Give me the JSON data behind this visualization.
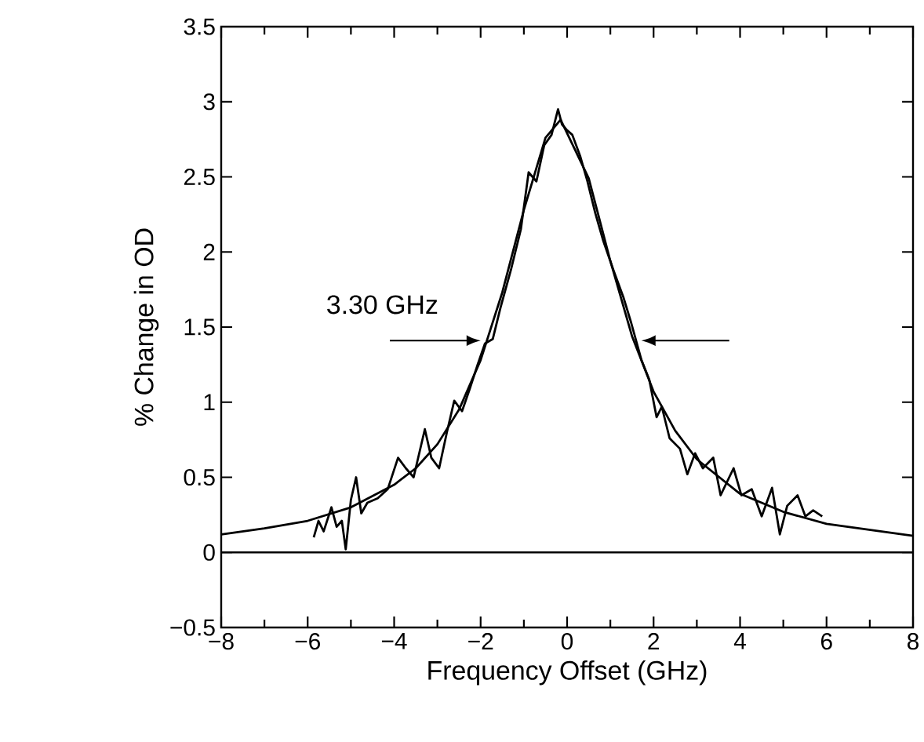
{
  "chart_data": {
    "type": "line",
    "xlabel": "Frequency Offset (GHz)",
    "ylabel": "% Change in OD",
    "annotations": [
      "3.30 GHz"
    ],
    "series": [
      {
        "color": "#000000",
        "x": [
          -5.86,
          -5.75,
          -5.63,
          -5.45,
          -5.33,
          -5.21,
          -5.12,
          -5.0,
          -4.88,
          -4.76,
          -4.62,
          -4.38,
          -4.15,
          -3.91,
          -3.73,
          -3.55,
          -3.29,
          -3.14,
          -2.96,
          -2.78,
          -2.61,
          -2.43,
          -2.25,
          -2.07,
          -1.9,
          -1.72,
          -1.54,
          -1.3,
          -1.07,
          -0.89,
          -0.71,
          -0.53,
          -0.36,
          -0.21,
          -0.12,
          0.0,
          0.12,
          0.3,
          0.47,
          0.65,
          0.83,
          1.07,
          1.3,
          1.48,
          1.72,
          1.9,
          2.07,
          2.19,
          2.37,
          2.61,
          2.78,
          2.96,
          3.14,
          3.38,
          3.55,
          3.85,
          4.03,
          4.27,
          4.5,
          4.74,
          4.92,
          5.09,
          5.33,
          5.51,
          5.69,
          5.9
        ],
        "values": [
          0.1,
          0.21,
          0.14,
          0.3,
          0.17,
          0.21,
          0.02,
          0.35,
          0.5,
          0.26,
          0.33,
          0.36,
          0.42,
          0.63,
          0.56,
          0.5,
          0.82,
          0.63,
          0.56,
          0.8,
          1.01,
          0.94,
          1.09,
          1.25,
          1.39,
          1.42,
          1.63,
          1.88,
          2.15,
          2.53,
          2.47,
          2.71,
          2.78,
          2.95,
          2.85,
          2.81,
          2.78,
          2.64,
          2.47,
          2.26,
          2.08,
          1.88,
          1.7,
          1.53,
          1.28,
          1.15,
          0.9,
          0.97,
          0.76,
          0.69,
          0.52,
          0.66,
          0.56,
          0.63,
          0.38,
          0.56,
          0.38,
          0.42,
          0.24,
          0.43,
          0.12,
          0.31,
          0.38,
          0.24,
          0.28,
          0.24
        ]
      },
      {
        "color": "#000000",
        "x": [
          -8,
          -7,
          -6,
          -5,
          -4,
          -3.5,
          -3,
          -2.5,
          -2,
          -1.5,
          -1,
          -0.5,
          -0.15,
          0.5,
          1,
          1.5,
          2,
          2.5,
          3,
          4,
          5,
          6,
          7,
          8
        ],
        "values": [
          0.12,
          0.16,
          0.21,
          0.3,
          0.45,
          0.56,
          0.72,
          0.95,
          1.28,
          1.73,
          2.28,
          2.76,
          2.88,
          2.49,
          1.94,
          1.44,
          1.07,
          0.81,
          0.62,
          0.39,
          0.27,
          0.19,
          0.15,
          0.11
        ]
      }
    ],
    "ref_lines": [
      {
        "axis": "y",
        "value": 0,
        "color": "#000000"
      }
    ],
    "xlim": [
      -8,
      8
    ],
    "ylim": [
      -0.5,
      3.5
    ],
    "xticks": [
      {
        "value": -8,
        "label": "−8"
      },
      {
        "value": -6,
        "label": "−6"
      },
      {
        "value": -4,
        "label": "−4"
      },
      {
        "value": -2,
        "label": "−2"
      },
      0,
      2,
      4,
      6,
      8
    ],
    "yticks": [
      {
        "value": -0.5,
        "label": "−0.5"
      },
      0,
      0.5,
      1,
      1.5,
      2,
      2.5,
      3,
      3.5
    ],
    "grid": false,
    "marker": "none",
    "line_style": "solid"
  }
}
